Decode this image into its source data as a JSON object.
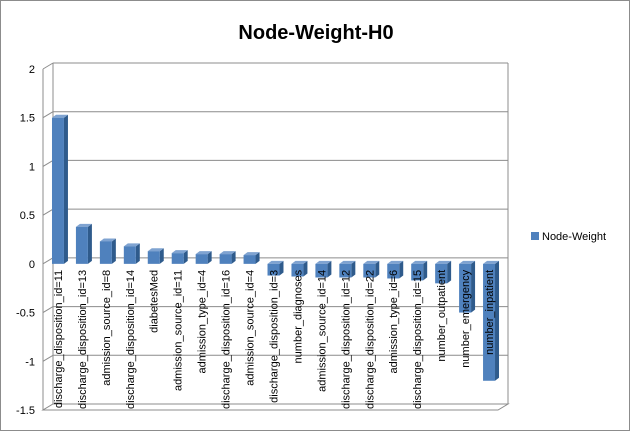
{
  "chart_data": {
    "type": "bar",
    "title": "Node-Weight-H0",
    "xlabel": "",
    "ylabel": "",
    "ylim": [
      -1.5,
      2
    ],
    "yticks": [
      2,
      1.5,
      1,
      0.5,
      0,
      -0.5,
      -1,
      -1.5
    ],
    "yticks_labels": [
      "2",
      "1.5",
      "1",
      "0.5",
      "0",
      "-0.5",
      "-1",
      "-1.5"
    ],
    "grid": true,
    "legend_position": "right",
    "bar_style": "3d-column",
    "categories": [
      "discharge_disposition_id=11",
      "discharge_disposition_id=13",
      "admission_source_id=8",
      "discharge_disposition_id=14",
      "diabetesMed",
      "admission_source_id=11",
      "admission_type_id=4",
      "discharge_disposition_id=16",
      "admission_source_id=4",
      "discharge_disposition_id=3",
      "number_diagnoses",
      "admission_source_id=14",
      "discharge_disposition_id=12",
      "discharge_disposition_id=22",
      "admission_type_id=6",
      "discharge_disposition_id=15",
      "number_outpatient",
      "number_emergency",
      "number_inpatient"
    ],
    "series": [
      {
        "name": "Node-Weight",
        "color": "#4f81bd",
        "values": [
          1.5,
          0.38,
          0.23,
          0.18,
          0.13,
          0.11,
          0.1,
          0.1,
          0.09,
          -0.12,
          -0.13,
          -0.14,
          -0.14,
          -0.14,
          -0.15,
          -0.17,
          -0.2,
          -0.5,
          -1.2
        ]
      }
    ]
  }
}
